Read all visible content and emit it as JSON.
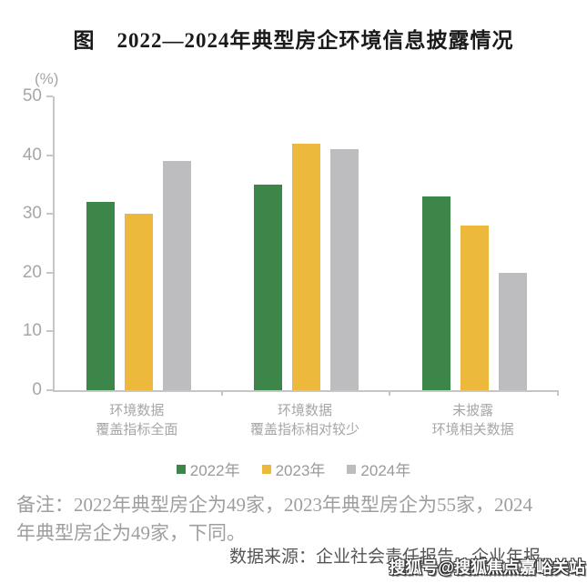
{
  "title": "图　2022—2024年典型房企环境信息披露情况",
  "chart_data": {
    "type": "bar",
    "title": "2022—2024年典型房企环境信息披露情况",
    "unit_label": "(%)",
    "ylim": [
      0,
      50
    ],
    "yticks": [
      0,
      10,
      20,
      30,
      40,
      50
    ],
    "grid": false,
    "legend_position": "bottom",
    "categories": [
      "环境数据覆盖指标全面",
      "环境数据覆盖指标相对较少",
      "未披露环境相关数据"
    ],
    "category_lines": [
      [
        "环境数据",
        "覆盖指标全面"
      ],
      [
        "环境数据",
        "覆盖指标相对较少"
      ],
      [
        "未披露",
        "环境相关数据"
      ]
    ],
    "series": [
      {
        "name": "2022年",
        "color": "#3B8648",
        "values": [
          32,
          35,
          33
        ]
      },
      {
        "name": "2023年",
        "color": "#EDB93D",
        "values": [
          30,
          42,
          28
        ]
      },
      {
        "name": "2024年",
        "color": "#BDBDBF",
        "values": [
          39,
          41,
          20
        ]
      }
    ]
  },
  "note": {
    "line1": "备注：2022年典型房企为49家，2023年典型房企为55家，2024",
    "line2": "年典型房企为49家，下同。"
  },
  "source": "数据来源：企业社会责任报告、企业年报。",
  "watermark": "搜狐号@搜狐焦点嘉峪关站",
  "colors": {
    "series_green": "#3B8648",
    "series_yellow": "#EDB93D",
    "series_gray": "#BDBDBF",
    "axis_line": "#C6C6C6",
    "axis_text": "#A6A6A6",
    "note_text": "#9E9E9E",
    "source_text": "#555555",
    "title_text": "#1A1A1A"
  }
}
